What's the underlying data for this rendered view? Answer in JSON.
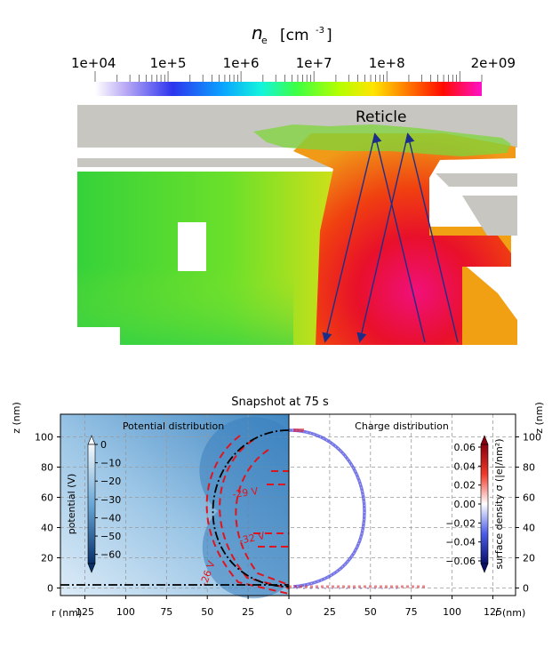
{
  "figure_top": {
    "colorbar": {
      "symbol": "n",
      "subscript": "e",
      "unit_base": "[cm",
      "unit_exp": "-3",
      "unit_close": "]",
      "tick_labels": [
        "1e+04",
        "1e+5",
        "1e+6",
        "1e+7",
        "1e+8",
        "2e+09"
      ],
      "tick_values": [
        10000,
        100000,
        1000000,
        10000000,
        100000000,
        2000000000
      ],
      "scale": "log",
      "colormap": [
        "#ffffff",
        "#b0a0f0",
        "#2030f0",
        "#00a0ff",
        "#10ffe0",
        "#40ff40",
        "#b0ff00",
        "#ffe000",
        "#ff6000",
        "#ff0000",
        "#ff10c0"
      ]
    },
    "label": "Reticle"
  },
  "figure_bottom": {
    "title": "Snapshot at 75 s",
    "left_panel": {
      "title": "Potential distribution",
      "colorbar_label": "potential (V)",
      "colorbar_ticks": [
        "0",
        "−10",
        "−20",
        "−30",
        "−40",
        "−50",
        "−60"
      ],
      "contour_labels": [
        "-29 V",
        "-32 V",
        "-26 V"
      ]
    },
    "right_panel": {
      "title": "Charge distribution",
      "colorbar_label": "surface density σ (|e|/nm²)",
      "colorbar_ticks": [
        "0.06",
        "0.04",
        "0.02",
        "0.00",
        "−0.02",
        "−0.04",
        "−0.06"
      ]
    },
    "y_axis_label": "z (nm)",
    "y_ticks": [
      "0",
      "20",
      "40",
      "60",
      "80",
      "100"
    ],
    "x_axis_label": "r (nm)",
    "x_ticks_left": [
      "125",
      "100",
      "75",
      "50",
      "25",
      "0"
    ],
    "x_ticks_right": [
      "25",
      "50",
      "75",
      "100",
      "125"
    ]
  },
  "chart_data": {
    "type": "heatmap",
    "title": "Snapshot at 75 s",
    "xlabel": "r (nm)",
    "ylabel": "z (nm)",
    "xlim": [
      -140,
      140
    ],
    "ylim": [
      -5,
      115
    ],
    "series": [
      {
        "name": "Potential distribution",
        "colorbar_range": [
          -65,
          0
        ]
      },
      {
        "name": "Charge distribution",
        "colorbar_range": [
          -0.065,
          0.065
        ]
      }
    ]
  },
  "colors": {
    "contour": "#e0141c",
    "boundary": "#000000",
    "charge": "#3a3ad0",
    "arrows": "#1b2f8a",
    "gray": "#c8c6c1"
  }
}
